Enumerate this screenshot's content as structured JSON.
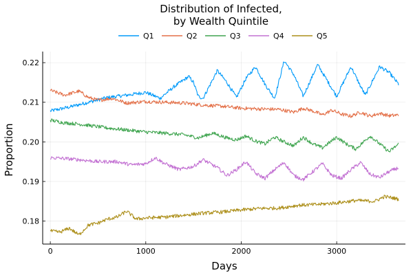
{
  "chart_data": {
    "type": "line",
    "title_line1": "Distribution of Infected,",
    "title_line2": "by Wealth Quintile",
    "xlabel": "Days",
    "ylabel": "Proportion",
    "xlim": [
      -80,
      3720
    ],
    "ylim": [
      0.1742,
      0.2228
    ],
    "xticks": [
      0,
      1000,
      2000,
      3000
    ],
    "yticks": [
      0.18,
      0.19,
      0.2,
      0.21,
      0.22
    ],
    "ytick_labels": [
      "0.18",
      "0.19",
      "0.20",
      "0.21",
      "0.22"
    ],
    "grid": true,
    "legend_position": "top-center, horizontal, above plot",
    "x_start": 0,
    "x_end": 3650,
    "series": [
      {
        "name": "Q1",
        "color": "#009AFA",
        "points": [
          [
            0,
            0.2078
          ],
          [
            200,
            0.2088
          ],
          [
            400,
            0.21
          ],
          [
            600,
            0.2112
          ],
          [
            800,
            0.2118
          ],
          [
            1000,
            0.2125
          ],
          [
            1150,
            0.211
          ],
          [
            1300,
            0.214
          ],
          [
            1450,
            0.2165
          ],
          [
            1500,
            0.215
          ],
          [
            1550,
            0.2115
          ],
          [
            1600,
            0.211
          ],
          [
            1750,
            0.218
          ],
          [
            1850,
            0.215
          ],
          [
            1950,
            0.2112
          ],
          [
            2050,
            0.216
          ],
          [
            2150,
            0.219
          ],
          [
            2250,
            0.2145
          ],
          [
            2350,
            0.211
          ],
          [
            2450,
            0.2205
          ],
          [
            2550,
            0.217
          ],
          [
            2650,
            0.2115
          ],
          [
            2800,
            0.2195
          ],
          [
            2950,
            0.2135
          ],
          [
            3000,
            0.2115
          ],
          [
            3150,
            0.219
          ],
          [
            3250,
            0.214
          ],
          [
            3300,
            0.2118
          ],
          [
            3450,
            0.219
          ],
          [
            3550,
            0.2175
          ],
          [
            3650,
            0.2145
          ]
        ]
      },
      {
        "name": "Q2",
        "color": "#E36F47",
        "points": [
          [
            0,
            0.213
          ],
          [
            150,
            0.2118
          ],
          [
            300,
            0.2128
          ],
          [
            400,
            0.2112
          ],
          [
            500,
            0.2105
          ],
          [
            650,
            0.211
          ],
          [
            800,
            0.2098
          ],
          [
            1000,
            0.2102
          ],
          [
            1200,
            0.21
          ],
          [
            1400,
            0.2098
          ],
          [
            1600,
            0.2093
          ],
          [
            1800,
            0.209
          ],
          [
            2000,
            0.2085
          ],
          [
            2200,
            0.2083
          ],
          [
            2400,
            0.2082
          ],
          [
            2550,
            0.2075
          ],
          [
            2650,
            0.2085
          ],
          [
            2750,
            0.2078
          ],
          [
            2850,
            0.2068
          ],
          [
            2950,
            0.208
          ],
          [
            3050,
            0.207
          ],
          [
            3150,
            0.2065
          ],
          [
            3250,
            0.2075
          ],
          [
            3350,
            0.2065
          ],
          [
            3450,
            0.2072
          ],
          [
            3550,
            0.2066
          ],
          [
            3650,
            0.2068
          ]
        ]
      },
      {
        "name": "Q3",
        "color": "#3EA44E",
        "points": [
          [
            0,
            0.2055
          ],
          [
            150,
            0.2048
          ],
          [
            300,
            0.2045
          ],
          [
            450,
            0.204
          ],
          [
            600,
            0.2035
          ],
          [
            800,
            0.203
          ],
          [
            1000,
            0.2025
          ],
          [
            1200,
            0.2022
          ],
          [
            1400,
            0.2018
          ],
          [
            1550,
            0.201
          ],
          [
            1700,
            0.2022
          ],
          [
            1850,
            0.201
          ],
          [
            1950,
            0.2005
          ],
          [
            2050,
            0.2015
          ],
          [
            2150,
            0.2002
          ],
          [
            2250,
            0.1995
          ],
          [
            2350,
            0.2012
          ],
          [
            2450,
            0.2
          ],
          [
            2550,
            0.199
          ],
          [
            2650,
            0.2012
          ],
          [
            2750,
            0.1995
          ],
          [
            2850,
            0.1985
          ],
          [
            3000,
            0.2012
          ],
          [
            3100,
            0.1995
          ],
          [
            3200,
            0.1982
          ],
          [
            3350,
            0.2015
          ],
          [
            3450,
            0.1995
          ],
          [
            3550,
            0.1975
          ],
          [
            3650,
            0.1995
          ]
        ]
      },
      {
        "name": "Q4",
        "color": "#C270D2",
        "points": [
          [
            0,
            0.196
          ],
          [
            150,
            0.1958
          ],
          [
            300,
            0.1955
          ],
          [
            500,
            0.195
          ],
          [
            700,
            0.195
          ],
          [
            850,
            0.1942
          ],
          [
            1000,
            0.1945
          ],
          [
            1100,
            0.196
          ],
          [
            1200,
            0.1945
          ],
          [
            1350,
            0.193
          ],
          [
            1500,
            0.1938
          ],
          [
            1600,
            0.1955
          ],
          [
            1750,
            0.1935
          ],
          [
            1850,
            0.1915
          ],
          [
            1950,
            0.193
          ],
          [
            2050,
            0.195
          ],
          [
            2150,
            0.192
          ],
          [
            2250,
            0.1908
          ],
          [
            2350,
            0.193
          ],
          [
            2450,
            0.1948
          ],
          [
            2550,
            0.1915
          ],
          [
            2650,
            0.1905
          ],
          [
            2750,
            0.1925
          ],
          [
            2850,
            0.1945
          ],
          [
            2950,
            0.1915
          ],
          [
            3050,
            0.1908
          ],
          [
            3150,
            0.193
          ],
          [
            3250,
            0.1948
          ],
          [
            3350,
            0.1918
          ],
          [
            3450,
            0.191
          ],
          [
            3550,
            0.1925
          ],
          [
            3650,
            0.1935
          ]
        ]
      },
      {
        "name": "Q5",
        "color": "#AC8E18",
        "points": [
          [
            0,
            0.1775
          ],
          [
            100,
            0.1772
          ],
          [
            200,
            0.1782
          ],
          [
            300,
            0.1765
          ],
          [
            400,
            0.179
          ],
          [
            500,
            0.1795
          ],
          [
            600,
            0.1805
          ],
          [
            700,
            0.181
          ],
          [
            800,
            0.1825
          ],
          [
            900,
            0.1805
          ],
          [
            1000,
            0.1808
          ],
          [
            1200,
            0.181
          ],
          [
            1400,
            0.1815
          ],
          [
            1600,
            0.182
          ],
          [
            1800,
            0.1823
          ],
          [
            2000,
            0.1828
          ],
          [
            2200,
            0.1832
          ],
          [
            2400,
            0.1833
          ],
          [
            2600,
            0.184
          ],
          [
            2800,
            0.1842
          ],
          [
            3000,
            0.1846
          ],
          [
            3200,
            0.1852
          ],
          [
            3400,
            0.185
          ],
          [
            3500,
            0.1862
          ],
          [
            3600,
            0.1858
          ],
          [
            3650,
            0.1855
          ]
        ]
      }
    ]
  }
}
